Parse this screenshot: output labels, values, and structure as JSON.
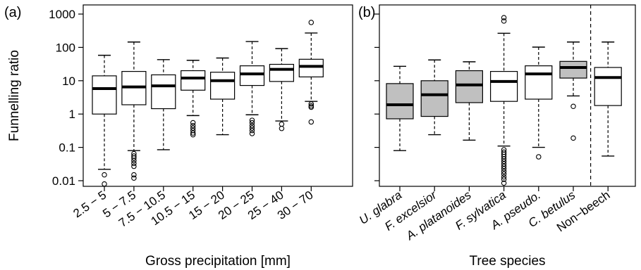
{
  "chart_data": [
    {
      "type": "box",
      "panel_label": "(a)",
      "xlabel": "Gross precipitation [mm]",
      "ylabel": "Funnelling ratio",
      "yscale": "log",
      "ylim": [
        0.007,
        1000
      ],
      "yticks": [
        0.01,
        0.1,
        1,
        10,
        100,
        1000
      ],
      "ytick_labels": [
        "0.01",
        "0.1",
        "1",
        "10",
        "100",
        "1000"
      ],
      "grid": false,
      "categories": [
        "2.5 − 5",
        "5 − 7.5",
        "7.5 − 10.5",
        "10.5 − 15",
        "15 − 20",
        "20 − 25",
        "25 − 40",
        "30 − 70"
      ],
      "boxes": [
        {
          "low": 0.022,
          "q1": 1.0,
          "median": 5.8,
          "q3": 14,
          "high": 58,
          "outliers": [
            0.015,
            0.008
          ],
          "fill": "#ffffff"
        },
        {
          "low": 0.08,
          "q1": 1.9,
          "median": 6.5,
          "q3": 19,
          "high": 145,
          "outliers": [
            0.065,
            0.055,
            0.048,
            0.04,
            0.033,
            0.027,
            0.015,
            0.012
          ],
          "fill": "#ffffff"
        },
        {
          "low": 0.085,
          "q1": 1.45,
          "median": 7.0,
          "q3": 15,
          "high": 43,
          "outliers": [],
          "fill": "#ffffff"
        },
        {
          "low": 0.9,
          "q1": 5.2,
          "median": 12,
          "q3": 20,
          "high": 41,
          "outliers": [
            0.55,
            0.45,
            0.38,
            0.32,
            0.27,
            0.24
          ],
          "fill": "#ffffff"
        },
        {
          "low": 0.24,
          "q1": 2.8,
          "median": 10,
          "q3": 18,
          "high": 48,
          "outliers": [],
          "fill": "#ffffff"
        },
        {
          "low": 0.95,
          "q1": 7.2,
          "median": 16,
          "q3": 28,
          "high": 150,
          "outliers": [
            0.65,
            0.55,
            0.45,
            0.38,
            0.32,
            0.26
          ],
          "fill": "#ffffff"
        },
        {
          "low": 0.62,
          "q1": 9.5,
          "median": 22,
          "q3": 31,
          "high": 92,
          "outliers": [
            0.5,
            0.37
          ],
          "fill": "#ffffff"
        },
        {
          "low": 2.4,
          "q1": 13,
          "median": 27,
          "q3": 44,
          "high": 270,
          "outliers": [
            560,
            2.0,
            1.75,
            1.6,
            0.58
          ],
          "fill": "#ffffff"
        }
      ]
    },
    {
      "type": "box",
      "panel_label": "(b)",
      "xlabel": "Tree species",
      "yscale": "log",
      "ylim": [
        0.007,
        1000
      ],
      "grid": false,
      "divider_after_index": 5,
      "categories": [
        "U. glabra",
        "F. excelsior",
        "A. platanoides",
        "F. sylvatica",
        "A. pseudo.",
        "C. betulus",
        "Non−beech"
      ],
      "category_italic": [
        true,
        true,
        true,
        true,
        true,
        true,
        false
      ],
      "boxes": [
        {
          "low": 0.08,
          "q1": 0.72,
          "median": 1.9,
          "q3": 8.2,
          "high": 27,
          "outliers": [],
          "fill": "#c0c0c0"
        },
        {
          "low": 0.24,
          "q1": 0.85,
          "median": 3.8,
          "q3": 10,
          "high": 42,
          "outliers": [],
          "fill": "#c0c0c0"
        },
        {
          "low": 0.165,
          "q1": 2.2,
          "median": 7.5,
          "q3": 20,
          "high": 37,
          "outliers": [],
          "fill": "#c0c0c0"
        },
        {
          "low": 0.11,
          "q1": 2.4,
          "median": 9.5,
          "q3": 19,
          "high": 265,
          "outliers": [
            780,
            620,
            0.085,
            0.072,
            0.062,
            0.053,
            0.045,
            0.038,
            0.032,
            0.027,
            0.023,
            0.019,
            0.016,
            0.013,
            0.011,
            0.0085
          ],
          "fill": "#ffffff"
        },
        {
          "low": 0.1,
          "q1": 2.8,
          "median": 16,
          "q3": 28,
          "high": 102,
          "outliers": [
            0.052
          ],
          "fill": "#ffffff"
        },
        {
          "low": 3.5,
          "q1": 12,
          "median": 25,
          "q3": 38,
          "high": 145,
          "outliers": [
            1.7,
            0.19
          ],
          "fill": "#c0c0c0"
        },
        {
          "low": 0.055,
          "q1": 1.8,
          "median": 12.5,
          "q3": 25,
          "high": 145,
          "outliers": [],
          "fill": "#ffffff"
        }
      ]
    }
  ]
}
